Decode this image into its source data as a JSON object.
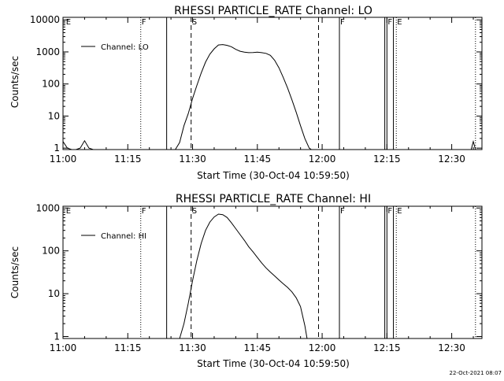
{
  "chart_data": [
    {
      "type": "line",
      "title": "RHESSI PARTICLE_RATE Channel: LO",
      "xlabel": "Start Time (30-Oct-04 10:59:50)",
      "ylabel": "Counts/sec",
      "y_scale": "log",
      "ylim": [
        0.9,
        12000
      ],
      "xlim": [
        "11:00",
        "12:37"
      ],
      "xticks": [
        "11:00",
        "11:15",
        "11:30",
        "11:45",
        "12:00",
        "12:15",
        "12:30"
      ],
      "yticks": [
        "1",
        "10",
        "100",
        "1000",
        "10000"
      ],
      "legend": {
        "placement": "top-left",
        "label": "Channel: LO"
      },
      "series": [
        {
          "x": [
            "11:00:00",
            "11:01:00",
            "11:02:00",
            "11:03:00",
            "11:04:00",
            "11:05:00",
            "11:06:00",
            "11:07:00",
            "11:26:00",
            "11:27:00",
            "11:28:00",
            "11:29:00",
            "11:30:00",
            "11:31:00",
            "11:32:00",
            "11:33:00",
            "11:34:00",
            "11:35:00",
            "11:36:00",
            "11:37:00",
            "11:38:00",
            "11:39:00",
            "11:40:00",
            "11:41:00",
            "11:42:00",
            "11:43:00",
            "11:44:00",
            "11:45:00",
            "11:46:00",
            "11:47:00",
            "11:48:00",
            "11:49:00",
            "11:50:00",
            "11:51:00",
            "11:52:00",
            "11:53:00",
            "11:54:00",
            "11:55:00",
            "11:56:00",
            "11:57:00",
            "11:57:30",
            "12:34:30",
            "12:35:00",
            "12:35:30"
          ],
          "y": [
            1.6,
            1,
            0.9,
            0.9,
            1,
            1.7,
            1,
            0.9,
            0.9,
            1.5,
            5,
            12,
            35,
            90,
            220,
            480,
            850,
            1250,
            1650,
            1700,
            1600,
            1450,
            1200,
            1050,
            980,
            950,
            960,
            980,
            950,
            900,
            780,
            550,
            320,
            160,
            75,
            32,
            13,
            5,
            2,
            1,
            0.9,
            0.9,
            1.6,
            0.9
          ]
        }
      ],
      "flags": [
        {
          "label": "E",
          "time": "11:00:30",
          "style": "none"
        },
        {
          "label": "F",
          "time": "11:18:00",
          "style": "dotted"
        },
        {
          "label": "",
          "time": "11:24:00",
          "style": "solid"
        },
        {
          "label": "S",
          "time": "11:29:40",
          "style": "dashed"
        },
        {
          "label": "",
          "time": "11:59:10",
          "style": "dashed"
        },
        {
          "label": "F",
          "time": "12:04:00",
          "style": "solid"
        },
        {
          "label": "",
          "time": "12:14:30",
          "style": "solid"
        },
        {
          "label": "F",
          "time": "12:15:00",
          "style": "solid"
        },
        {
          "label": "",
          "time": "12:16:30",
          "style": "solid"
        },
        {
          "label": "E",
          "time": "12:17:10",
          "style": "dotted"
        },
        {
          "label": "",
          "time": "12:35:30",
          "style": "dotted"
        }
      ]
    },
    {
      "type": "line",
      "title": "RHESSI PARTICLE_RATE Channel: HI",
      "xlabel": "Start Time (30-Oct-04 10:59:50)",
      "ylabel": "Counts/sec",
      "y_scale": "log",
      "ylim": [
        0.9,
        1100
      ],
      "xlim": [
        "11:00",
        "12:37"
      ],
      "xticks": [
        "11:00",
        "11:15",
        "11:30",
        "11:45",
        "12:00",
        "12:15",
        "12:30"
      ],
      "yticks": [
        "1",
        "10",
        "100",
        "1000"
      ],
      "legend": {
        "placement": "top-left",
        "label": "Channel: HI"
      },
      "series": [
        {
          "x": [
            "11:00:00",
            "11:27:00",
            "11:28:00",
            "11:29:00",
            "11:30:00",
            "11:31:00",
            "11:32:00",
            "11:33:00",
            "11:34:00",
            "11:35:00",
            "11:36:00",
            "11:37:00",
            "11:38:00",
            "11:39:00",
            "11:40:00",
            "11:41:00",
            "11:42:00",
            "11:43:00",
            "11:44:00",
            "11:45:00",
            "11:46:00",
            "11:47:00",
            "11:48:00",
            "11:49:00",
            "11:50:00",
            "11:51:00",
            "11:52:00",
            "11:53:00",
            "11:54:00",
            "11:55:00",
            "11:56:00",
            "11:56:30",
            "12:37:00"
          ],
          "y": [
            0.9,
            0.9,
            2,
            6,
            20,
            60,
            150,
            300,
            470,
            620,
            720,
            700,
            600,
            450,
            330,
            240,
            175,
            125,
            95,
            70,
            52,
            40,
            32,
            26,
            21,
            17,
            14,
            11,
            8,
            5,
            1.8,
            0.9,
            0.9
          ]
        }
      ],
      "flags": [
        {
          "label": "E",
          "time": "11:00:30",
          "style": "none"
        },
        {
          "label": "F",
          "time": "11:18:00",
          "style": "dotted"
        },
        {
          "label": "",
          "time": "11:24:00",
          "style": "solid"
        },
        {
          "label": "S",
          "time": "11:29:40",
          "style": "dashed"
        },
        {
          "label": "",
          "time": "11:59:10",
          "style": "dashed"
        },
        {
          "label": "F",
          "time": "12:04:00",
          "style": "solid"
        },
        {
          "label": "",
          "time": "12:14:30",
          "style": "solid"
        },
        {
          "label": "F",
          "time": "12:15:00",
          "style": "solid"
        },
        {
          "label": "",
          "time": "12:16:30",
          "style": "solid"
        },
        {
          "label": "E",
          "time": "12:17:10",
          "style": "dotted"
        },
        {
          "label": "",
          "time": "12:35:30",
          "style": "dotted"
        }
      ]
    }
  ],
  "footer": {
    "timestamp": "22-Oct-2021 08:07"
  }
}
